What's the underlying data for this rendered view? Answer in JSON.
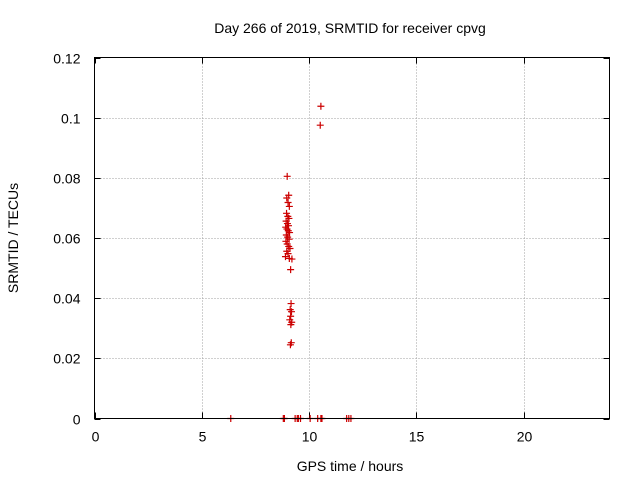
{
  "chart_data": {
    "type": "scatter",
    "title": "Day 266 of 2019, SRMTID for receiver cpvg",
    "xlabel": "GPS time / hours",
    "ylabel": "SRMTID / TECUs",
    "xlim": [
      0,
      24
    ],
    "ylim": [
      0,
      0.12
    ],
    "xticks": [
      0,
      5,
      10,
      15,
      20
    ],
    "yticks": [
      0,
      0.02,
      0.04,
      0.06,
      0.08,
      0.1,
      0.12
    ],
    "xtick_labels": [
      "0",
      "5",
      "10",
      "15",
      "20"
    ],
    "ytick_labels": [
      "0",
      "0.02",
      "0.04",
      "0.06",
      "0.08",
      "0.1",
      "0.12"
    ],
    "grid": true,
    "marker": "+",
    "series": [
      {
        "name": "cpvg",
        "color": "#cc0000",
        "points": [
          [
            8.98,
            0.0805
          ],
          [
            9.05,
            0.0742
          ],
          [
            8.96,
            0.0733
          ],
          [
            9.02,
            0.0718
          ],
          [
            9.08,
            0.0705
          ],
          [
            8.95,
            0.0682
          ],
          [
            9.01,
            0.0672
          ],
          [
            9.06,
            0.0665
          ],
          [
            8.93,
            0.0656
          ],
          [
            8.99,
            0.0648
          ],
          [
            9.04,
            0.0641
          ],
          [
            8.91,
            0.0636
          ],
          [
            8.97,
            0.063
          ],
          [
            9.03,
            0.0624
          ],
          [
            9.09,
            0.0618
          ],
          [
            8.94,
            0.061
          ],
          [
            9.0,
            0.0603
          ],
          [
            9.07,
            0.0596
          ],
          [
            8.92,
            0.0589
          ],
          [
            8.98,
            0.058
          ],
          [
            9.05,
            0.0572
          ],
          [
            9.11,
            0.0565
          ],
          [
            8.96,
            0.0556
          ],
          [
            9.02,
            0.0548
          ],
          [
            8.9,
            0.0538
          ],
          [
            9.08,
            0.0532
          ],
          [
            9.2,
            0.053
          ],
          [
            9.14,
            0.0495
          ],
          [
            9.16,
            0.0382
          ],
          [
            9.12,
            0.0362
          ],
          [
            9.18,
            0.0355
          ],
          [
            9.14,
            0.034
          ],
          [
            9.1,
            0.0328
          ],
          [
            9.19,
            0.032
          ],
          [
            9.15,
            0.0312
          ],
          [
            9.17,
            0.0252
          ],
          [
            9.13,
            0.0245
          ],
          [
            10.55,
            0.1038
          ],
          [
            10.52,
            0.0975
          ],
          [
            6.35,
            0.0
          ],
          [
            8.8,
            0.0
          ],
          [
            8.85,
            0.0
          ],
          [
            9.35,
            0.0
          ],
          [
            9.45,
            0.0
          ],
          [
            9.5,
            0.0
          ],
          [
            9.6,
            0.0
          ],
          [
            10.05,
            0.0
          ],
          [
            10.4,
            0.0
          ],
          [
            10.55,
            0.0
          ],
          [
            10.6,
            0.0
          ],
          [
            11.75,
            0.0
          ],
          [
            11.85,
            0.0
          ],
          [
            11.95,
            0.0
          ]
        ]
      }
    ]
  }
}
